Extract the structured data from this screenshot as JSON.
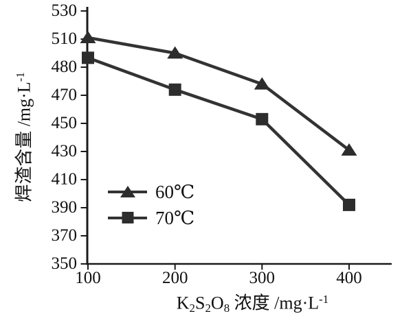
{
  "chart_data": {
    "type": "line",
    "title": "",
    "x": [
      100,
      200,
      300,
      400
    ],
    "x_tick_labels": [
      "100",
      "200",
      "300",
      "400"
    ],
    "y_ticks": [
      530,
      510,
      480,
      470,
      450,
      430,
      410,
      390,
      370,
      350
    ],
    "ylim": [
      350,
      530
    ],
    "xlabel": "K₂S₂O₈ 浓度 /mg·L⁻¹",
    "ylabel": "焊渣含量 /mg·L⁻¹",
    "xlabel_segments": [
      {
        "text": "K",
        "style": "normal"
      },
      {
        "text": "2",
        "style": "sub"
      },
      {
        "text": "S",
        "style": "normal"
      },
      {
        "text": "2",
        "style": "sub"
      },
      {
        "text": "O",
        "style": "normal"
      },
      {
        "text": "8",
        "style": "sub"
      },
      {
        "text": " 浓度 /mg·L",
        "style": "normal"
      },
      {
        "text": "-1",
        "style": "sup"
      }
    ],
    "ylabel_segments": [
      {
        "text": "焊渣含量 /mg·L",
        "style": "normal"
      },
      {
        "text": "-1",
        "style": "sup"
      }
    ],
    "series": [
      {
        "name": "60℃",
        "marker": "triangle",
        "values": [
          511,
          495,
          474,
          431
        ]
      },
      {
        "name": "70℃",
        "marker": "square",
        "values": [
          490,
          472,
          453,
          392
        ]
      }
    ],
    "legend_position": "inside-lower-left",
    "grid": false,
    "line_color": "#333333",
    "marker_color": "#2d2d2d",
    "axis_color": "#1a1a1a",
    "text_color": "#111111",
    "background": "#ffffff"
  }
}
